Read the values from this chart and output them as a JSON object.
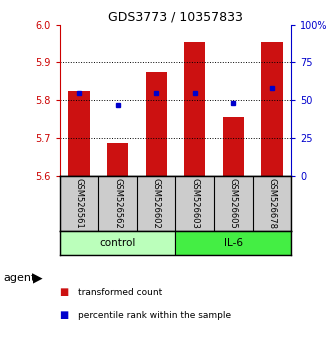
{
  "title": "GDS3773 / 10357833",
  "samples": [
    "GSM526561",
    "GSM526562",
    "GSM526602",
    "GSM526603",
    "GSM526605",
    "GSM526678"
  ],
  "bar_tops": [
    5.825,
    5.685,
    5.875,
    5.955,
    5.755,
    5.955
  ],
  "bar_bottom": 5.6,
  "blue_dot_pct": [
    55,
    47,
    55,
    55,
    48,
    58
  ],
  "ylim": [
    5.6,
    6.0
  ],
  "yticks_left": [
    5.6,
    5.7,
    5.8,
    5.9,
    6.0
  ],
  "yticks_right_vals": [
    0,
    25,
    50,
    75,
    100
  ],
  "yticks_right_labels": [
    "0",
    "25",
    "50",
    "75",
    "100%"
  ],
  "bar_color": "#cc1111",
  "dot_color": "#0000cc",
  "groups": [
    {
      "label": "control",
      "n_samples": 3,
      "color": "#bbffbb"
    },
    {
      "label": "IL-6",
      "n_samples": 3,
      "color": "#44ee44"
    }
  ],
  "agent_label": "agent",
  "legend_items": [
    {
      "label": "transformed count",
      "color": "#cc1111"
    },
    {
      "label": "percentile rank within the sample",
      "color": "#0000cc"
    }
  ],
  "bar_width": 0.55,
  "sample_panel_bg": "#cccccc",
  "plot_bg": "#ffffff"
}
